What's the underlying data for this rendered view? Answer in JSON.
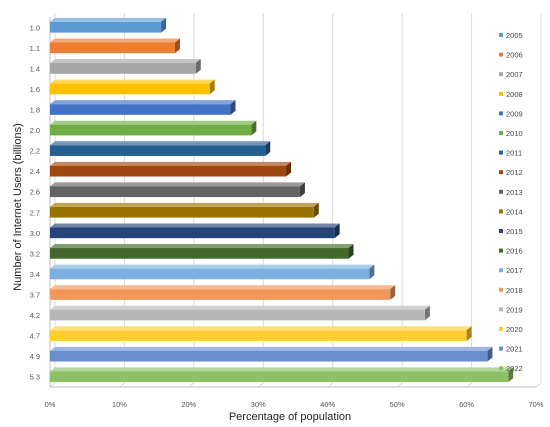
{
  "chart_data": {
    "type": "bar",
    "orientation": "horizontal",
    "style": "3d",
    "xlabel": "Percentage of population",
    "ylabel": "Number of Internet Users (billions)",
    "xlim": [
      0,
      70
    ],
    "x_ticks": [
      "0%",
      "10%",
      "20%",
      "30%",
      "40%",
      "50%",
      "60%",
      "70%"
    ],
    "grid": "vertical",
    "legend_position": "right",
    "categories": [
      "1.0",
      "1.1",
      "1.4",
      "1.6",
      "1.8",
      "2.0",
      "2.2",
      "2.4",
      "2.6",
      "2.7",
      "3.0",
      "3.2",
      "3.4",
      "3.7",
      "4.2",
      "4.7",
      "4.9",
      "5.3"
    ],
    "series_names": [
      "2005",
      "2006",
      "2007",
      "2008",
      "2009",
      "2010",
      "2011",
      "2012",
      "2013",
      "2014",
      "2015",
      "2016",
      "2017",
      "2018",
      "2019",
      "2020",
      "2021",
      "2022"
    ],
    "values": [
      16,
      18,
      21,
      23,
      26,
      29,
      31,
      34,
      36,
      38,
      41,
      43,
      46,
      49,
      54,
      60,
      63,
      66
    ],
    "colors": [
      "#5b9bd5",
      "#ed7d31",
      "#a5a5a5",
      "#ffc000",
      "#4472c4",
      "#70ad47",
      "#255e91",
      "#9e480e",
      "#636363",
      "#997300",
      "#264478",
      "#43682b",
      "#7cafdd",
      "#f1975a",
      "#b7b7b7",
      "#ffcd33",
      "#698ed0",
      "#8cc168"
    ]
  }
}
